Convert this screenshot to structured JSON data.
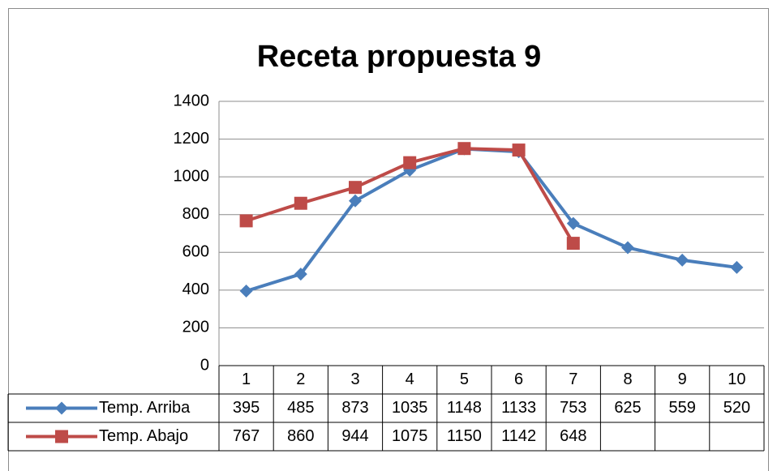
{
  "chart_data": {
    "type": "line",
    "title": "Receta propuesta 9",
    "categories": [
      "1",
      "2",
      "3",
      "4",
      "5",
      "6",
      "7",
      "8",
      "9",
      "10"
    ],
    "series": [
      {
        "name": "Temp. Arriba",
        "color": "#4a7ebb",
        "marker": "diamond",
        "values": [
          395,
          485,
          873,
          1035,
          1148,
          1133,
          753,
          625,
          559,
          520
        ]
      },
      {
        "name": "Temp. Abajo",
        "color": "#be4b48",
        "marker": "square",
        "values": [
          767,
          860,
          944,
          1075,
          1150,
          1142,
          648,
          null,
          null,
          null
        ]
      }
    ],
    "ylim": [
      0,
      1400
    ],
    "yticks": [
      0,
      200,
      400,
      600,
      800,
      1000,
      1200,
      1400
    ],
    "grid": true,
    "data_table": true
  }
}
